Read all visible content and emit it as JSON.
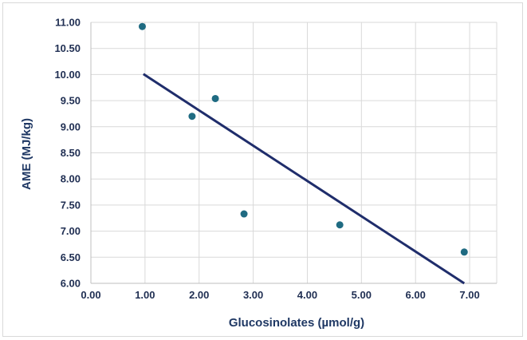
{
  "chart_data": {
    "type": "scatter",
    "title": "",
    "xlabel": "Glucosinolates (µmol/g)",
    "ylabel": "AME (MJ/kg)",
    "xlim": [
      0,
      7.5
    ],
    "ylim": [
      6.0,
      11.0
    ],
    "x_ticks": [
      "0.00",
      "1.00",
      "2.00",
      "3.00",
      "4.00",
      "5.00",
      "6.00",
      "7.00"
    ],
    "y_ticks": [
      "6.00",
      "6.50",
      "7.00",
      "7.50",
      "8.00",
      "8.50",
      "9.00",
      "9.50",
      "10.00",
      "10.50",
      "11.00"
    ],
    "grid": true,
    "legend": "none",
    "series": [
      {
        "type": "scatter",
        "points": [
          {
            "x": 0.95,
            "y": 10.92
          },
          {
            "x": 1.87,
            "y": 9.2
          },
          {
            "x": 2.3,
            "y": 9.54
          },
          {
            "x": 2.83,
            "y": 7.33
          },
          {
            "x": 4.6,
            "y": 7.12
          },
          {
            "x": 6.9,
            "y": 6.6
          }
        ],
        "color": "#1f6b82"
      },
      {
        "type": "trendline",
        "points": [
          {
            "x": 0.97,
            "y": 10.01
          },
          {
            "x": 6.9,
            "y": 6.0
          }
        ],
        "color": "#1f2d6b"
      }
    ]
  }
}
